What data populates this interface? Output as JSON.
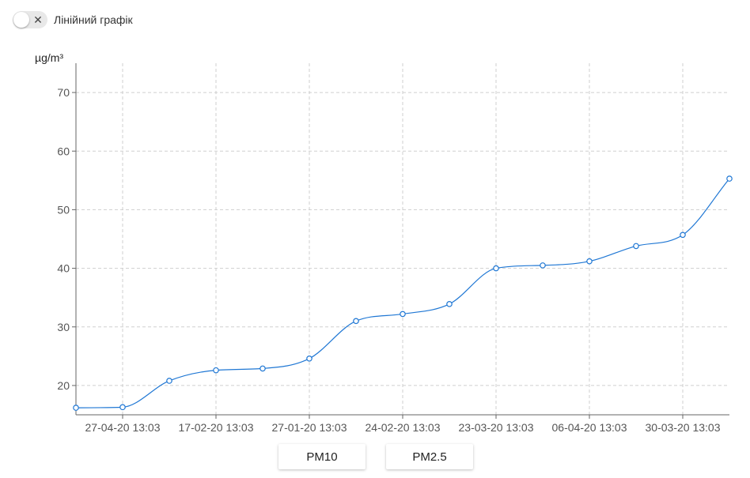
{
  "toggle": {
    "label": "Лінійний графік",
    "on": false,
    "off_icon": "close-icon"
  },
  "chart_data": {
    "type": "line",
    "ylabel": "µg/m³",
    "ylim": [
      15,
      75
    ],
    "yticks": [
      20,
      30,
      40,
      50,
      60,
      70
    ],
    "x_tick_labels": [
      "27-04-20 13:03",
      "17-02-20 13:03",
      "27-01-20 13:03",
      "24-02-20 13:03",
      "23-03-20 13:03",
      "06-04-20 13:03",
      "30-03-20 13:03"
    ],
    "grid": true,
    "series_color": "#1f77d4",
    "series": [
      {
        "values": [
          16.2,
          16.3,
          20.8,
          22.6,
          22.9,
          24.6,
          31.0,
          32.2,
          33.9,
          40.0,
          40.5,
          41.2,
          43.8,
          45.7,
          55.3
        ]
      }
    ]
  },
  "buttons": {
    "pm10": "PM10",
    "pm25": "PM2.5"
  }
}
